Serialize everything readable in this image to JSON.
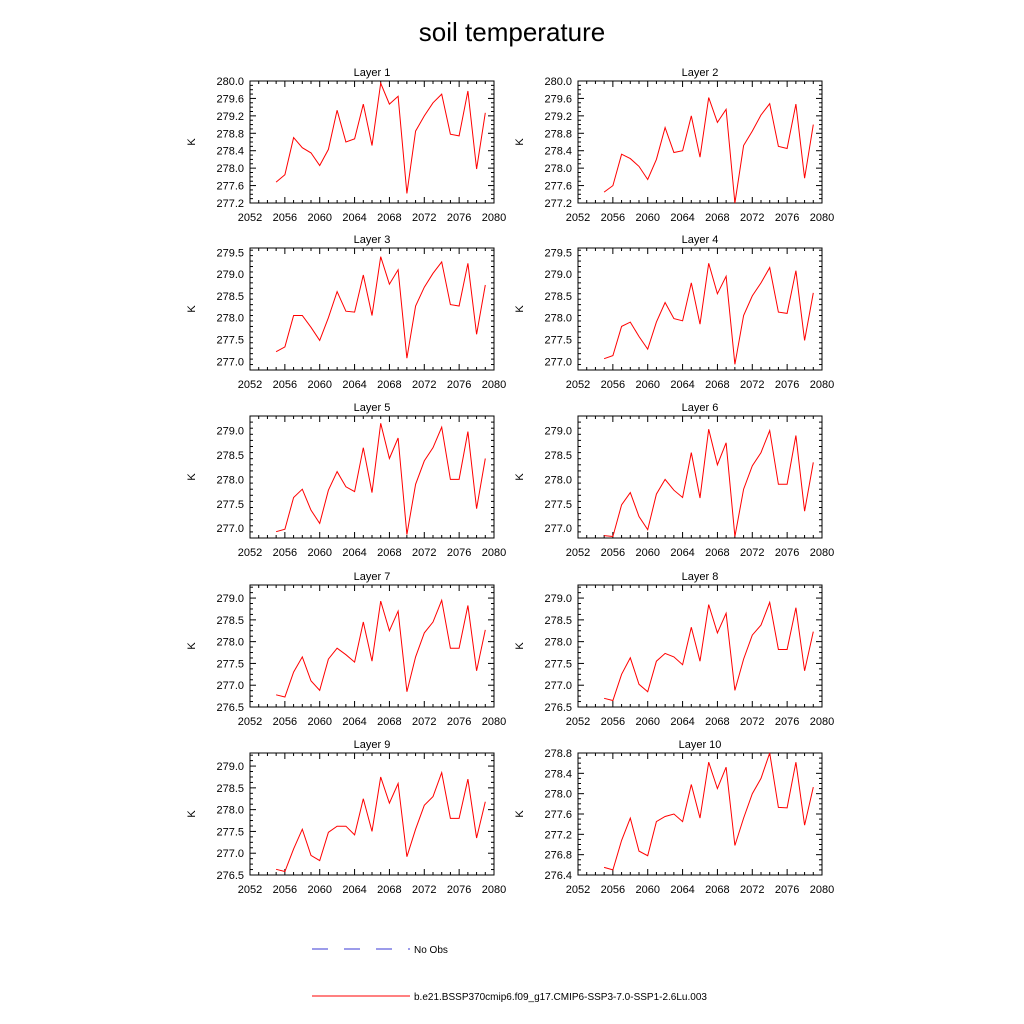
{
  "figure": {
    "title": "soil temperature",
    "legend": [
      {
        "label": "No Obs",
        "color": "#3a3ad6",
        "style": "dashed"
      },
      {
        "label": "b.e21.BSSP370cmip6.f09_g17.CMIP6-SSP3-7.0-SSP1-2.6Lu.003",
        "color": "#ff0000",
        "style": "solid"
      }
    ]
  },
  "chart_data": [
    {
      "type": "line",
      "title": "Layer 1",
      "ylabel": "K",
      "xlim": [
        2052,
        2080
      ],
      "ylim": [
        277.2,
        280.0
      ],
      "xticks": [
        2052,
        2056,
        2060,
        2064,
        2068,
        2072,
        2076,
        2080
      ],
      "yticks": [
        "277.2",
        "277.6",
        "278.0",
        "278.4",
        "278.8",
        "279.2",
        "279.6",
        "280.0"
      ],
      "x": [
        2055,
        2056,
        2057,
        2058,
        2059,
        2060,
        2061,
        2062,
        2063,
        2064,
        2065,
        2066,
        2067,
        2068,
        2069,
        2070,
        2071,
        2072,
        2073,
        2074,
        2075,
        2076,
        2077,
        2078,
        2079
      ],
      "series": [
        {
          "color": "#ff0000",
          "values": [
            277.68,
            277.85,
            278.7,
            278.47,
            278.35,
            278.06,
            278.43,
            279.33,
            278.6,
            278.67,
            279.47,
            278.52,
            279.95,
            279.47,
            279.65,
            277.42,
            278.85,
            279.2,
            279.5,
            279.7,
            278.78,
            278.74,
            279.77,
            277.98,
            279.27
          ]
        }
      ]
    },
    {
      "type": "line",
      "title": "Layer 2",
      "ylabel": "K",
      "xlim": [
        2052,
        2080
      ],
      "ylim": [
        277.2,
        280.0
      ],
      "xticks": [
        2052,
        2056,
        2060,
        2064,
        2068,
        2072,
        2076,
        2080
      ],
      "yticks": [
        "277.2",
        "277.6",
        "278.0",
        "278.4",
        "278.8",
        "279.2",
        "279.6",
        "280.0"
      ],
      "x": [
        2055,
        2056,
        2057,
        2058,
        2059,
        2060,
        2061,
        2062,
        2063,
        2064,
        2065,
        2066,
        2067,
        2068,
        2069,
        2070,
        2071,
        2072,
        2073,
        2074,
        2075,
        2076,
        2077,
        2078,
        2079
      ],
      "series": [
        {
          "color": "#ff0000",
          "values": [
            277.45,
            277.6,
            278.32,
            278.22,
            278.04,
            277.74,
            278.2,
            278.93,
            278.36,
            278.4,
            279.2,
            278.25,
            279.62,
            279.05,
            279.35,
            277.2,
            278.52,
            278.85,
            279.22,
            279.48,
            278.5,
            278.45,
            279.47,
            277.77,
            279.0
          ]
        }
      ]
    },
    {
      "type": "line",
      "title": "Layer 3",
      "ylabel": "K",
      "xlim": [
        2052,
        2080
      ],
      "ylim": [
        276.8,
        279.6
      ],
      "xticks": [
        2052,
        2056,
        2060,
        2064,
        2068,
        2072,
        2076,
        2080
      ],
      "yticks": [
        "277.0",
        "277.5",
        "278.0",
        "278.5",
        "279.0",
        "279.5"
      ],
      "x": [
        2055,
        2056,
        2057,
        2058,
        2059,
        2060,
        2061,
        2062,
        2063,
        2064,
        2065,
        2066,
        2067,
        2068,
        2069,
        2070,
        2071,
        2072,
        2073,
        2074,
        2075,
        2076,
        2077,
        2078,
        2079
      ],
      "series": [
        {
          "color": "#ff0000",
          "values": [
            277.22,
            277.33,
            278.05,
            278.05,
            277.78,
            277.48,
            278.0,
            278.6,
            278.15,
            278.13,
            278.98,
            278.05,
            279.4,
            278.77,
            279.1,
            277.07,
            278.27,
            278.7,
            279.02,
            279.28,
            278.3,
            278.27,
            279.25,
            277.62,
            278.75
          ]
        }
      ]
    },
    {
      "type": "line",
      "title": "Layer 4",
      "ylabel": "K",
      "xlim": [
        2052,
        2080
      ],
      "ylim": [
        276.8,
        279.6
      ],
      "xticks": [
        2052,
        2056,
        2060,
        2064,
        2068,
        2072,
        2076,
        2080
      ],
      "yticks": [
        "277.0",
        "277.5",
        "278.0",
        "278.5",
        "279.0",
        "279.5"
      ],
      "x": [
        2055,
        2056,
        2057,
        2058,
        2059,
        2060,
        2061,
        2062,
        2063,
        2064,
        2065,
        2066,
        2067,
        2068,
        2069,
        2070,
        2071,
        2072,
        2073,
        2074,
        2075,
        2076,
        2077,
        2078,
        2079
      ],
      "series": [
        {
          "color": "#ff0000",
          "values": [
            277.06,
            277.13,
            277.8,
            277.9,
            277.57,
            277.28,
            277.9,
            278.35,
            277.98,
            277.93,
            278.8,
            277.85,
            279.25,
            278.55,
            278.95,
            276.93,
            278.05,
            278.5,
            278.8,
            279.15,
            278.13,
            278.1,
            279.08,
            277.48,
            278.57
          ]
        }
      ]
    },
    {
      "type": "line",
      "title": "Layer 5",
      "ylabel": "K",
      "xlim": [
        2052,
        2080
      ],
      "ylim": [
        276.8,
        279.3
      ],
      "xticks": [
        2052,
        2056,
        2060,
        2064,
        2068,
        2072,
        2076,
        2080
      ],
      "yticks": [
        "277.0",
        "277.5",
        "278.0",
        "278.5",
        "279.0"
      ],
      "x": [
        2055,
        2056,
        2057,
        2058,
        2059,
        2060,
        2061,
        2062,
        2063,
        2064,
        2065,
        2066,
        2067,
        2068,
        2069,
        2070,
        2071,
        2072,
        2073,
        2074,
        2075,
        2076,
        2077,
        2078,
        2079
      ],
      "series": [
        {
          "color": "#ff0000",
          "values": [
            276.93,
            276.98,
            277.63,
            277.8,
            277.37,
            277.1,
            277.78,
            278.16,
            277.85,
            277.75,
            278.65,
            277.73,
            279.15,
            278.43,
            278.85,
            276.87,
            277.9,
            278.38,
            278.65,
            279.07,
            278.0,
            278.0,
            278.98,
            277.4,
            278.43
          ]
        }
      ]
    },
    {
      "type": "line",
      "title": "Layer 6",
      "ylabel": "K",
      "xlim": [
        2052,
        2080
      ],
      "ylim": [
        276.8,
        279.3
      ],
      "xticks": [
        2052,
        2056,
        2060,
        2064,
        2068,
        2072,
        2076,
        2080
      ],
      "yticks": [
        "277.0",
        "277.5",
        "278.0",
        "278.5",
        "279.0"
      ],
      "x": [
        2055,
        2056,
        2057,
        2058,
        2059,
        2060,
        2061,
        2062,
        2063,
        2064,
        2065,
        2066,
        2067,
        2068,
        2069,
        2070,
        2071,
        2072,
        2073,
        2074,
        2075,
        2076,
        2077,
        2078,
        2079
      ],
      "series": [
        {
          "color": "#ff0000",
          "values": [
            276.85,
            276.83,
            277.48,
            277.73,
            277.24,
            276.97,
            277.7,
            278.0,
            277.78,
            277.63,
            278.55,
            277.62,
            279.03,
            278.3,
            278.75,
            276.83,
            277.8,
            278.28,
            278.55,
            279.0,
            277.9,
            277.9,
            278.9,
            277.35,
            278.35
          ]
        }
      ]
    },
    {
      "type": "line",
      "title": "Layer 7",
      "ylabel": "K",
      "xlim": [
        2052,
        2080
      ],
      "ylim": [
        276.5,
        279.3
      ],
      "xticks": [
        2052,
        2056,
        2060,
        2064,
        2068,
        2072,
        2076,
        2080
      ],
      "yticks": [
        "276.5",
        "277.0",
        "277.5",
        "278.0",
        "278.5",
        "279.0"
      ],
      "x": [
        2055,
        2056,
        2057,
        2058,
        2059,
        2060,
        2061,
        2062,
        2063,
        2064,
        2065,
        2066,
        2067,
        2068,
        2069,
        2070,
        2071,
        2072,
        2073,
        2074,
        2075,
        2076,
        2077,
        2078,
        2079
      ],
      "series": [
        {
          "color": "#ff0000",
          "values": [
            276.78,
            276.73,
            277.3,
            277.65,
            277.1,
            276.88,
            277.6,
            277.85,
            277.7,
            277.53,
            278.45,
            277.55,
            278.93,
            278.25,
            278.7,
            276.85,
            277.65,
            278.2,
            278.45,
            278.95,
            277.85,
            277.85,
            278.83,
            277.33,
            278.27
          ]
        }
      ]
    },
    {
      "type": "line",
      "title": "Layer 8",
      "ylabel": "K",
      "xlim": [
        2052,
        2080
      ],
      "ylim": [
        276.5,
        279.3
      ],
      "xticks": [
        2052,
        2056,
        2060,
        2064,
        2068,
        2072,
        2076,
        2080
      ],
      "yticks": [
        "276.5",
        "277.0",
        "277.5",
        "278.0",
        "278.5",
        "279.0"
      ],
      "x": [
        2055,
        2056,
        2057,
        2058,
        2059,
        2060,
        2061,
        2062,
        2063,
        2064,
        2065,
        2066,
        2067,
        2068,
        2069,
        2070,
        2071,
        2072,
        2073,
        2074,
        2075,
        2076,
        2077,
        2078,
        2079
      ],
      "series": [
        {
          "color": "#ff0000",
          "values": [
            276.7,
            276.65,
            277.25,
            277.63,
            277.02,
            276.85,
            277.55,
            277.73,
            277.65,
            277.47,
            278.33,
            277.55,
            278.85,
            278.2,
            278.65,
            276.88,
            277.6,
            278.15,
            278.38,
            278.9,
            277.82,
            277.82,
            278.78,
            277.33,
            278.23
          ]
        }
      ]
    },
    {
      "type": "line",
      "title": "Layer 9",
      "ylabel": "K",
      "xlim": [
        2052,
        2080
      ],
      "ylim": [
        276.5,
        279.3
      ],
      "xticks": [
        2052,
        2056,
        2060,
        2064,
        2068,
        2072,
        2076,
        2080
      ],
      "yticks": [
        "276.5",
        "277.0",
        "277.5",
        "278.0",
        "278.5",
        "279.0"
      ],
      "x": [
        2055,
        2056,
        2057,
        2058,
        2059,
        2060,
        2061,
        2062,
        2063,
        2064,
        2065,
        2066,
        2067,
        2068,
        2069,
        2070,
        2071,
        2072,
        2073,
        2074,
        2075,
        2076,
        2077,
        2078,
        2079
      ],
      "series": [
        {
          "color": "#ff0000",
          "values": [
            276.63,
            276.58,
            277.1,
            277.55,
            276.95,
            276.83,
            277.48,
            277.62,
            277.62,
            277.42,
            278.25,
            277.5,
            278.75,
            278.15,
            278.6,
            276.92,
            277.55,
            278.1,
            278.3,
            278.85,
            277.8,
            277.8,
            278.7,
            277.35,
            278.18
          ]
        }
      ]
    },
    {
      "type": "line",
      "title": "Layer 10",
      "ylabel": "K",
      "xlim": [
        2052,
        2080
      ],
      "ylim": [
        276.4,
        278.8
      ],
      "xticks": [
        2052,
        2056,
        2060,
        2064,
        2068,
        2072,
        2076,
        2080
      ],
      "yticks": [
        "276.4",
        "276.8",
        "277.2",
        "277.6",
        "278.0",
        "278.4",
        "278.8"
      ],
      "x": [
        2055,
        2056,
        2057,
        2058,
        2059,
        2060,
        2061,
        2062,
        2063,
        2064,
        2065,
        2066,
        2067,
        2068,
        2069,
        2070,
        2071,
        2072,
        2073,
        2074,
        2075,
        2076,
        2077,
        2078,
        2079
      ],
      "series": [
        {
          "color": "#ff0000",
          "values": [
            276.55,
            276.5,
            277.08,
            277.52,
            276.87,
            276.78,
            277.45,
            277.55,
            277.6,
            277.45,
            278.18,
            277.52,
            278.62,
            278.1,
            278.52,
            276.98,
            277.52,
            278.0,
            278.3,
            278.8,
            277.73,
            277.72,
            278.62,
            277.38,
            278.13
          ]
        }
      ]
    }
  ]
}
